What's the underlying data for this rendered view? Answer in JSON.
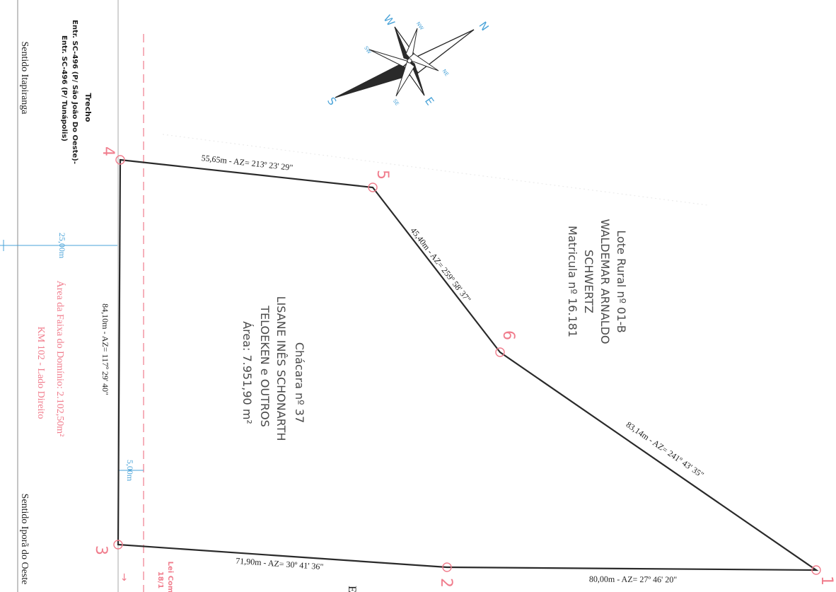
{
  "road": {
    "trecho_label": "Trecho",
    "trecho_line1": "Entr. SC-496 (P/ São João Do Oeste)-",
    "trecho_line2": "Entr. SC-496 (P/ Tunápolis)",
    "sentido_left": "Sentido Itapiranga",
    "sentido_right": "Sentido Iporã do Oeste",
    "fragment_a": "Lei Com",
    "fragment_b": "18/1",
    "fragment_c": "E"
  },
  "faixa": {
    "width_label": "25,00m",
    "narrow_label": "5,00m",
    "area_label": "Área da Faixa do Domínio: 2.102,50m²",
    "km_label": "KM 102 - Lado Direito"
  },
  "compass": {
    "n": "N",
    "s": "S",
    "e": "E",
    "w": "W",
    "nw": "NW",
    "ne": "NE",
    "sw": "SW",
    "se": "SE"
  },
  "vertices": [
    "1",
    "2",
    "3",
    "4",
    "5",
    "6"
  ],
  "segments": {
    "s45": "55,65m - AZ= 213º 23' 29\"",
    "s56": "45,40m - AZ= 259º 58' 37\"",
    "s61": "83,14m - AZ= 241º 43' 35\"",
    "s34": "84,10m - AZ= 117º 29' 40\"",
    "s32": "71,90m - AZ= 30º 41' 36\"",
    "s21": "80,00m - AZ= 27º 46' 20\""
  },
  "parcel": {
    "name": "Chácara nº 37",
    "owner1": "LISANE INÊS SCHONARTH",
    "owner2": "TELOEKEN e OUTROS",
    "area": "Área: 7.951,90 m²"
  },
  "neighbor": {
    "line1": "Lote Rural nº 01-B",
    "line2": "WALDEMAR ARNALDO",
    "line3": "SCHWERTZ",
    "line4": "Matricula nº 16.181"
  },
  "colors": {
    "pink": "#f07c8c",
    "blue": "#4aa3d8",
    "line": "#2a2a2a"
  }
}
